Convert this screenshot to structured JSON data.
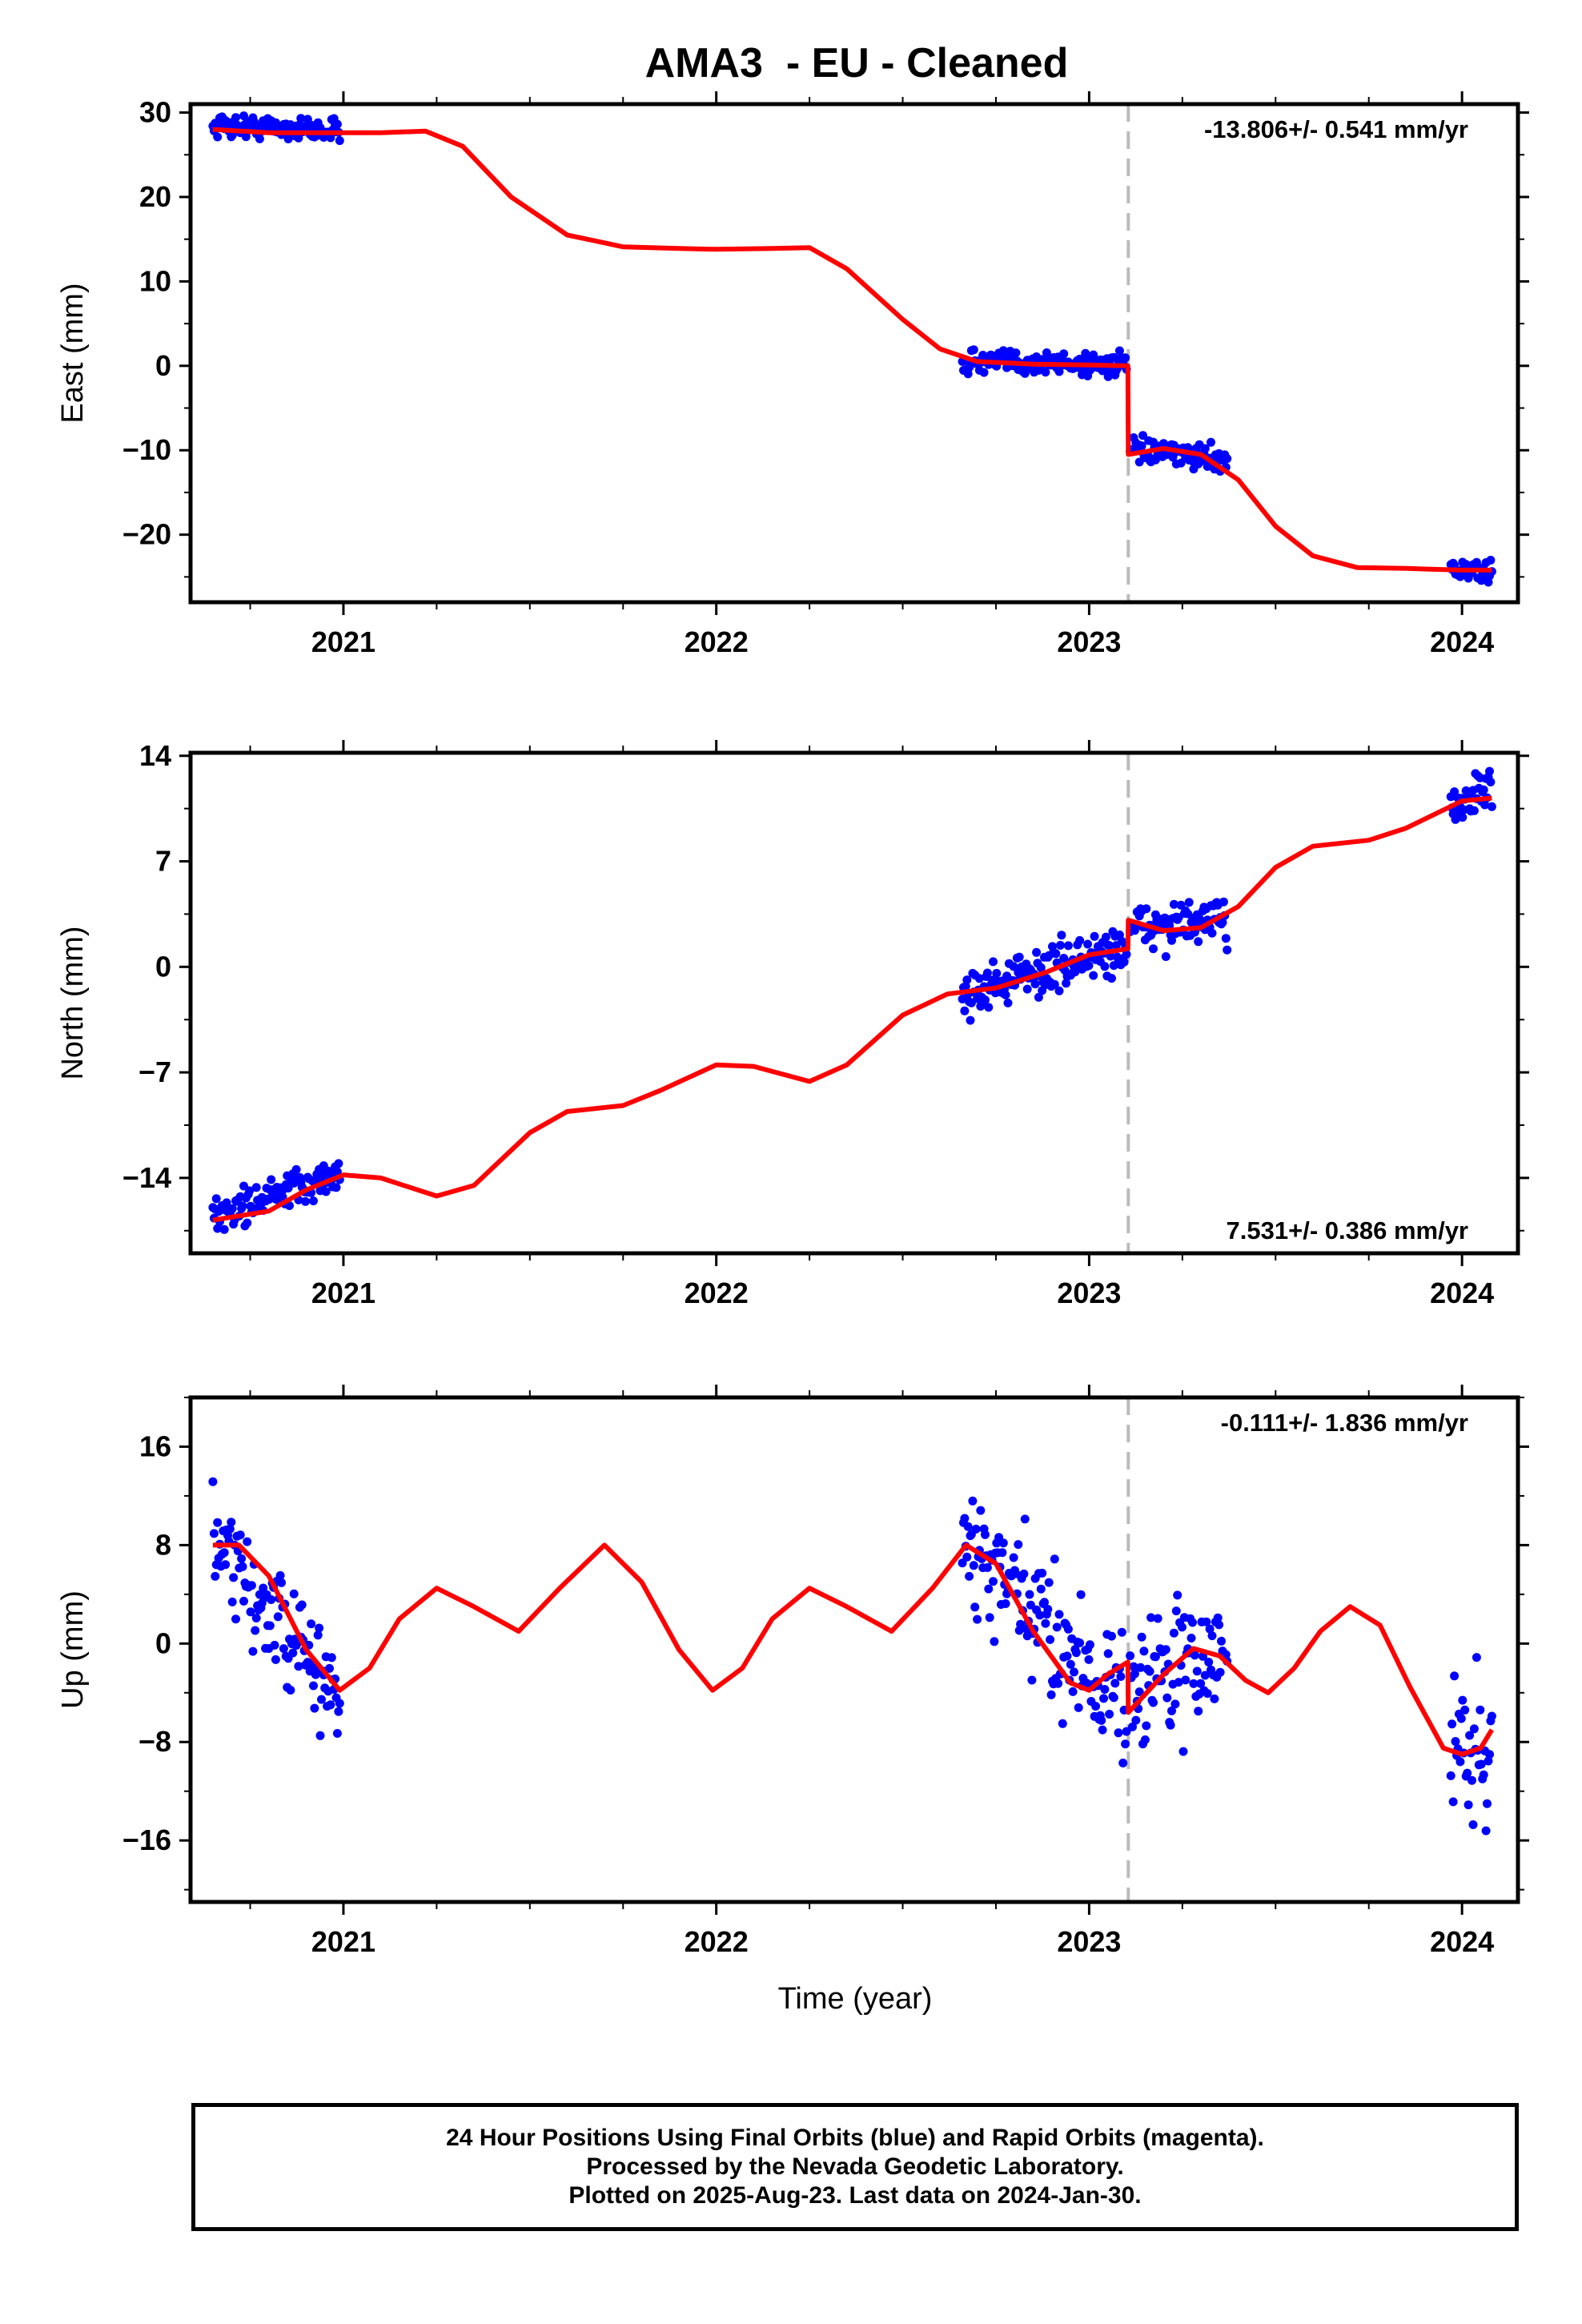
{
  "title": "AMA3  - EU - Cleaned",
  "x_axis_label": "Time (year)",
  "footer": {
    "line1": "24 Hour Positions Using Final Orbits (blue) and Rapid Orbits (magenta).",
    "line2": "Processed by the Nevada Geodetic Laboratory.",
    "line3": "Plotted on 2025-Aug-23. Last data on 2024-Jan-30."
  },
  "colors": {
    "data_points": "#0000ff",
    "model": "#ff0000",
    "step_line": "#bbbbbb",
    "frame": "#000000"
  },
  "chart_data": [
    {
      "type": "scatter",
      "panel": "east",
      "ylabel": "East (mm)",
      "xlim": [
        2020.59,
        2024.15
      ],
      "ylim": [
        -28,
        31
      ],
      "yticks": [
        30,
        20,
        10,
        0,
        -10,
        -20
      ],
      "xticks": [
        2021,
        2022,
        2023,
        2024
      ],
      "rate_text": "-13.806+/- 0.541 mm/yr",
      "rate_position": "top-right",
      "step_epoch": 2023.105,
      "data_segments": [
        {
          "start": 2020.65,
          "end": 2020.99,
          "mean_start": 28.5,
          "mean_end": 27.8,
          "spread": 1.1
        },
        {
          "start": 2022.66,
          "end": 2023.1,
          "mean_start": 0.5,
          "mean_end": 0.2,
          "spread": 1.2
        },
        {
          "start": 2023.11,
          "end": 2023.37,
          "mean_start": -10.0,
          "mean_end": -11.0,
          "spread": 1.1
        },
        {
          "start": 2023.97,
          "end": 2024.08,
          "mean_start": -24.0,
          "mean_end": -24.5,
          "spread": 1.1
        }
      ],
      "model": [
        [
          2020.65,
          28.0
        ],
        [
          2020.8,
          27.6
        ],
        [
          2020.95,
          27.6
        ],
        [
          2021.1,
          27.6
        ],
        [
          2021.22,
          27.8
        ],
        [
          2021.32,
          26.0
        ],
        [
          2021.45,
          20.0
        ],
        [
          2021.6,
          15.5
        ],
        [
          2021.75,
          14.1
        ],
        [
          2021.9,
          13.9
        ],
        [
          2022.0,
          13.8
        ],
        [
          2022.15,
          13.9
        ],
        [
          2022.25,
          14.0
        ],
        [
          2022.35,
          11.5
        ],
        [
          2022.5,
          5.5
        ],
        [
          2022.6,
          2.0
        ],
        [
          2022.7,
          0.5
        ],
        [
          2022.85,
          0.2
        ],
        [
          2023.0,
          0.1
        ],
        [
          2023.104,
          0.0
        ],
        [
          2023.105,
          -10.5
        ],
        [
          2023.2,
          -9.8
        ],
        [
          2023.3,
          -10.5
        ],
        [
          2023.4,
          -13.5
        ],
        [
          2023.5,
          -19.0
        ],
        [
          2023.6,
          -22.5
        ],
        [
          2023.72,
          -23.9
        ],
        [
          2023.85,
          -24.0
        ],
        [
          2024.0,
          -24.2
        ],
        [
          2024.08,
          -24.2
        ]
      ]
    },
    {
      "type": "scatter",
      "panel": "north",
      "ylabel": "North (mm)",
      "xlim": [
        2020.59,
        2024.15
      ],
      "ylim": [
        -19,
        14.2
      ],
      "yticks": [
        14,
        7,
        0,
        -7,
        -14
      ],
      "xticks": [
        2021,
        2022,
        2023,
        2024
      ],
      "rate_text": "7.531+/- 0.386 mm/yr",
      "rate_position": "bottom-right",
      "step_epoch": 2023.105,
      "data_segments": [
        {
          "start": 2020.65,
          "end": 2020.99,
          "mean_start": -16.5,
          "mean_end": -13.8,
          "spread": 1.0
        },
        {
          "start": 2022.66,
          "end": 2023.1,
          "mean_start": -1.8,
          "mean_end": 1.3,
          "spread": 1.3
        },
        {
          "start": 2023.11,
          "end": 2023.37,
          "mean_start": 2.6,
          "mean_end": 3.0,
          "spread": 1.2
        },
        {
          "start": 2023.97,
          "end": 2024.08,
          "mean_start": 10.8,
          "mean_end": 12.0,
          "spread": 1.3
        }
      ],
      "model": [
        [
          2020.65,
          -16.8
        ],
        [
          2020.8,
          -16.2
        ],
        [
          2020.9,
          -14.8
        ],
        [
          2021.0,
          -13.8
        ],
        [
          2021.1,
          -14.0
        ],
        [
          2021.25,
          -15.2
        ],
        [
          2021.35,
          -14.5
        ],
        [
          2021.5,
          -11.0
        ],
        [
          2021.6,
          -9.6
        ],
        [
          2021.75,
          -9.2
        ],
        [
          2021.85,
          -8.2
        ],
        [
          2022.0,
          -6.5
        ],
        [
          2022.1,
          -6.6
        ],
        [
          2022.25,
          -7.6
        ],
        [
          2022.35,
          -6.5
        ],
        [
          2022.5,
          -3.2
        ],
        [
          2022.62,
          -1.8
        ],
        [
          2022.75,
          -1.4
        ],
        [
          2022.88,
          -0.4
        ],
        [
          2023.0,
          0.8
        ],
        [
          2023.104,
          1.2
        ],
        [
          2023.105,
          3.1
        ],
        [
          2023.2,
          2.4
        ],
        [
          2023.3,
          2.6
        ],
        [
          2023.4,
          4.0
        ],
        [
          2023.5,
          6.6
        ],
        [
          2023.6,
          8.0
        ],
        [
          2023.75,
          8.4
        ],
        [
          2023.85,
          9.2
        ],
        [
          2024.0,
          11.0
        ],
        [
          2024.08,
          11.2
        ]
      ]
    },
    {
      "type": "scatter",
      "panel": "up",
      "ylabel": "Up (mm)",
      "xlim": [
        2020.59,
        2024.15
      ],
      "ylim": [
        -21,
        20
      ],
      "yticks": [
        16,
        8,
        0,
        -8,
        -16
      ],
      "xticks": [
        2021,
        2022,
        2023,
        2024
      ],
      "rate_text": "-0.111+/- 1.836 mm/yr",
      "rate_position": "top-right",
      "step_epoch": 2023.105,
      "data_segments": [
        {
          "start": 2020.65,
          "end": 2020.99,
          "mean_start": 8.0,
          "mean_end": -4.5,
          "spread": 3.5
        },
        {
          "start": 2022.66,
          "end": 2023.1,
          "mean_start": 8.0,
          "mean_end": -5.0,
          "spread": 4.5
        },
        {
          "start": 2023.11,
          "end": 2023.37,
          "mean_start": -3.0,
          "mean_end": -1.0,
          "spread": 4.5
        },
        {
          "start": 2023.97,
          "end": 2024.08,
          "mean_start": -8.0,
          "mean_end": -9.0,
          "spread": 5.0
        }
      ],
      "model": [
        [
          2020.65,
          8.0
        ],
        [
          2020.72,
          8.0
        ],
        [
          2020.8,
          5.5
        ],
        [
          2020.9,
          -0.5
        ],
        [
          2020.99,
          -3.8
        ],
        [
          2021.07,
          -2.0
        ],
        [
          2021.15,
          2.0
        ],
        [
          2021.25,
          4.5
        ],
        [
          2021.35,
          3.0
        ],
        [
          2021.47,
          1.0
        ],
        [
          2021.58,
          4.5
        ],
        [
          2021.7,
          8.0
        ],
        [
          2021.8,
          5.0
        ],
        [
          2021.9,
          -0.5
        ],
        [
          2021.99,
          -3.8
        ],
        [
          2022.07,
          -2.0
        ],
        [
          2022.15,
          2.0
        ],
        [
          2022.25,
          4.5
        ],
        [
          2022.35,
          3.0
        ],
        [
          2022.47,
          1.0
        ],
        [
          2022.58,
          4.5
        ],
        [
          2022.67,
          8.0
        ],
        [
          2022.75,
          6.5
        ],
        [
          2022.85,
          1.0
        ],
        [
          2022.95,
          -3.2
        ],
        [
          2023.0,
          -3.8
        ],
        [
          2023.05,
          -2.5
        ],
        [
          2023.104,
          -1.5
        ],
        [
          2023.105,
          -5.6
        ],
        [
          2023.2,
          -2.5
        ],
        [
          2023.28,
          -0.4
        ],
        [
          2023.35,
          -1.0
        ],
        [
          2023.42,
          -3.0
        ],
        [
          2023.48,
          -4.0
        ],
        [
          2023.55,
          -2.0
        ],
        [
          2023.62,
          1.0
        ],
        [
          2023.7,
          3.0
        ],
        [
          2023.78,
          1.5
        ],
        [
          2023.86,
          -3.5
        ],
        [
          2023.95,
          -8.5
        ],
        [
          2024.0,
          -9.0
        ],
        [
          2024.05,
          -8.5
        ],
        [
          2024.08,
          -7.0
        ]
      ]
    }
  ]
}
